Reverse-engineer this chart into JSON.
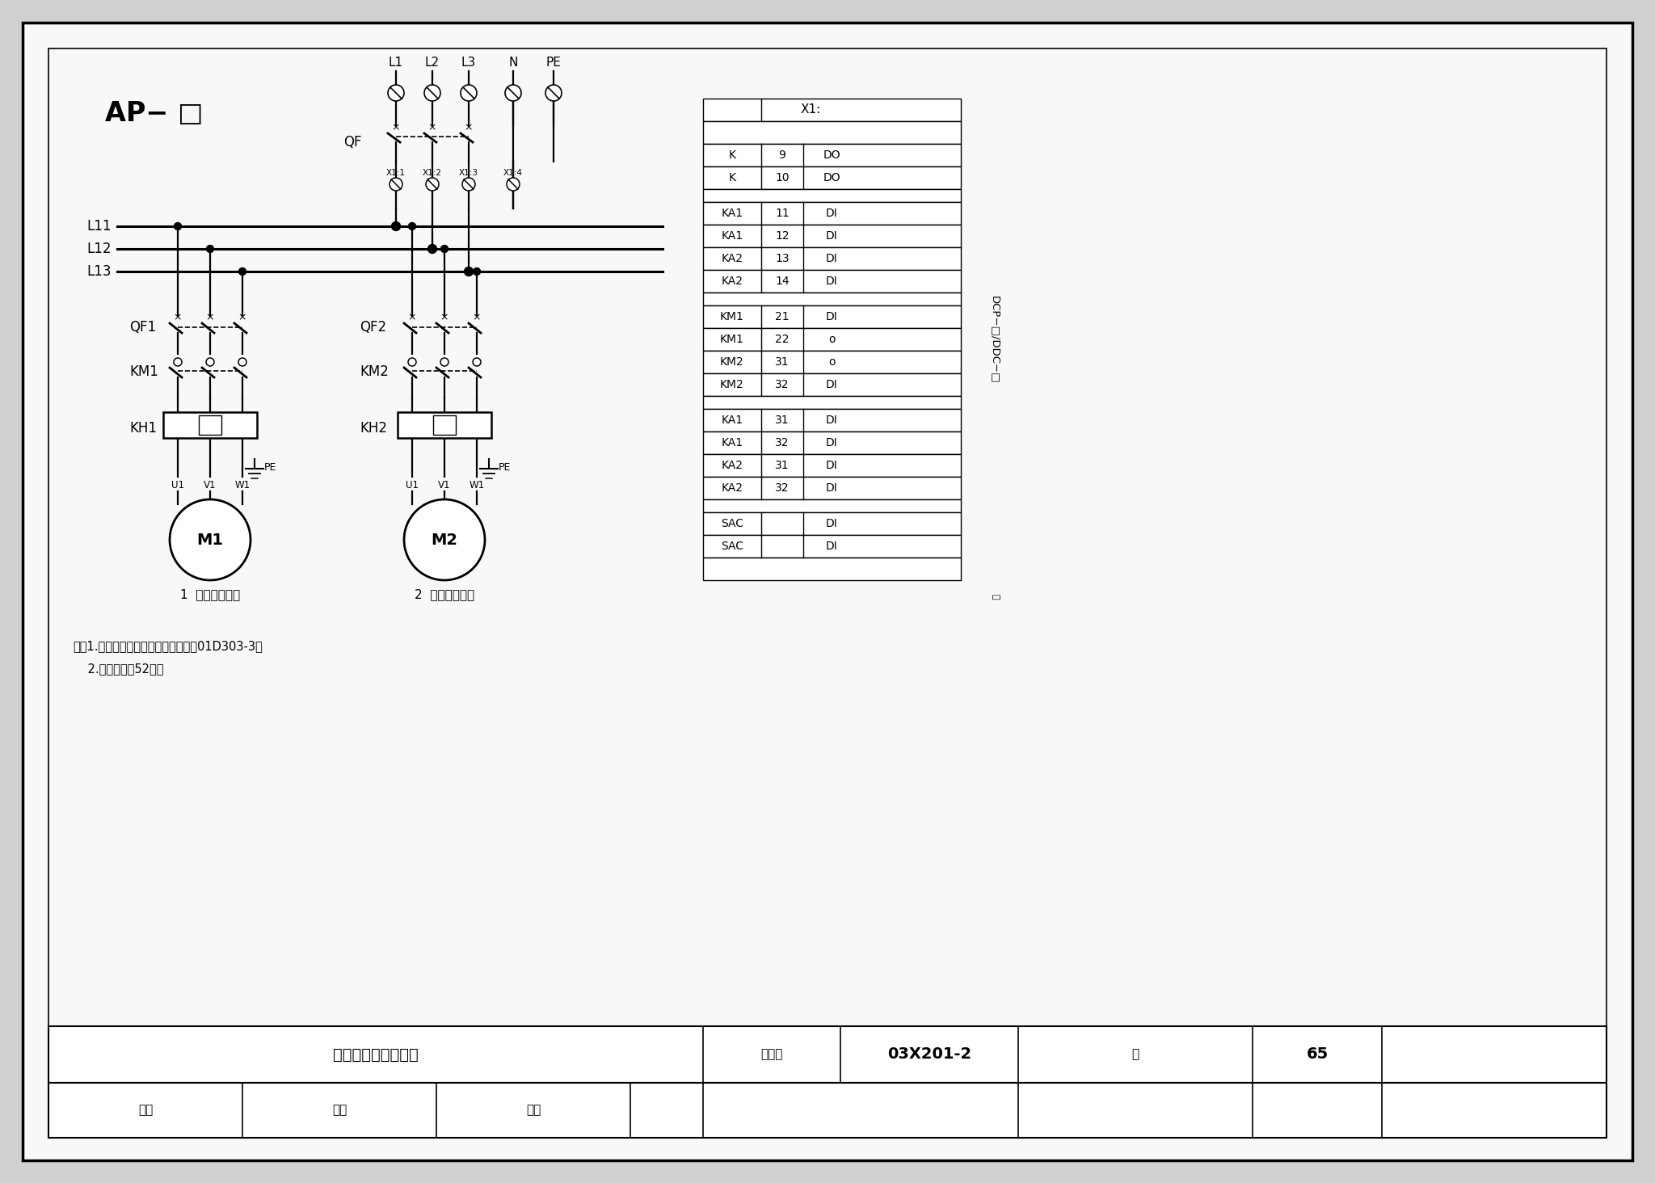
{
  "bg_color": "#d0d0d0",
  "paper_color": "#f8f8f8",
  "ap_label": "AP− □",
  "bus_labels": [
    "L1",
    "L2",
    "L3",
    "N",
    "PE"
  ],
  "bus_h_labels": [
    "L11",
    "L12",
    "L13"
  ],
  "qf_label": "QF",
  "xi_labels": [
    "X1:1",
    "X1:2",
    "X1:3",
    "X1:4"
  ],
  "motor1_comp": [
    "QF1",
    "KM1",
    "KH1",
    "M1"
  ],
  "motor2_comp": [
    "QF2",
    "KM2",
    "KH2",
    "M2"
  ],
  "motor1_label": "1  排水（污）泥",
  "motor2_label": "2  排水（污）泥",
  "uvw": [
    "U1",
    "V1",
    "W1"
  ],
  "pe_label": "PE",
  "table_title": "X1:",
  "table_rows": [
    [
      "K",
      "9",
      "DO"
    ],
    [
      "K",
      "10",
      "DO"
    ],
    [
      "KA1",
      "11",
      "DI"
    ],
    [
      "KA1",
      "12",
      "DI"
    ],
    [
      "KA2",
      "13",
      "DI"
    ],
    [
      "KA2",
      "14",
      "DI"
    ],
    [
      "KM1",
      "21",
      "DI"
    ],
    [
      "KM1",
      "22",
      "o"
    ],
    [
      "KM2",
      "31",
      "o"
    ],
    [
      "KM2",
      "32",
      "DI"
    ],
    [
      "KA1",
      "31",
      "DI"
    ],
    [
      "KA1",
      "32",
      "DI"
    ],
    [
      "KA2",
      "31",
      "DI"
    ],
    [
      "KA2",
      "32",
      "DI"
    ],
    [
      "SAC",
      "",
      "DI"
    ],
    [
      "SAC",
      "",
      "DI"
    ]
  ],
  "row_group_sizes": [
    2,
    4,
    4,
    4,
    2
  ],
  "dcp_label": "DCP−□/DDC−□",
  "note1": "注：1.排水（污）泥控制电路图见图集01D303-3。",
  "note2": "    2.监控图见第52页。",
  "title_text": "排水（污）泥控制笱",
  "figure_no": "03X201-2",
  "page_no": "65",
  "label_tujihao": "图集号",
  "label_ye": "页",
  "label_shenhe": "审核",
  "label_jiaodui": "校对",
  "label_sheji": "设计"
}
